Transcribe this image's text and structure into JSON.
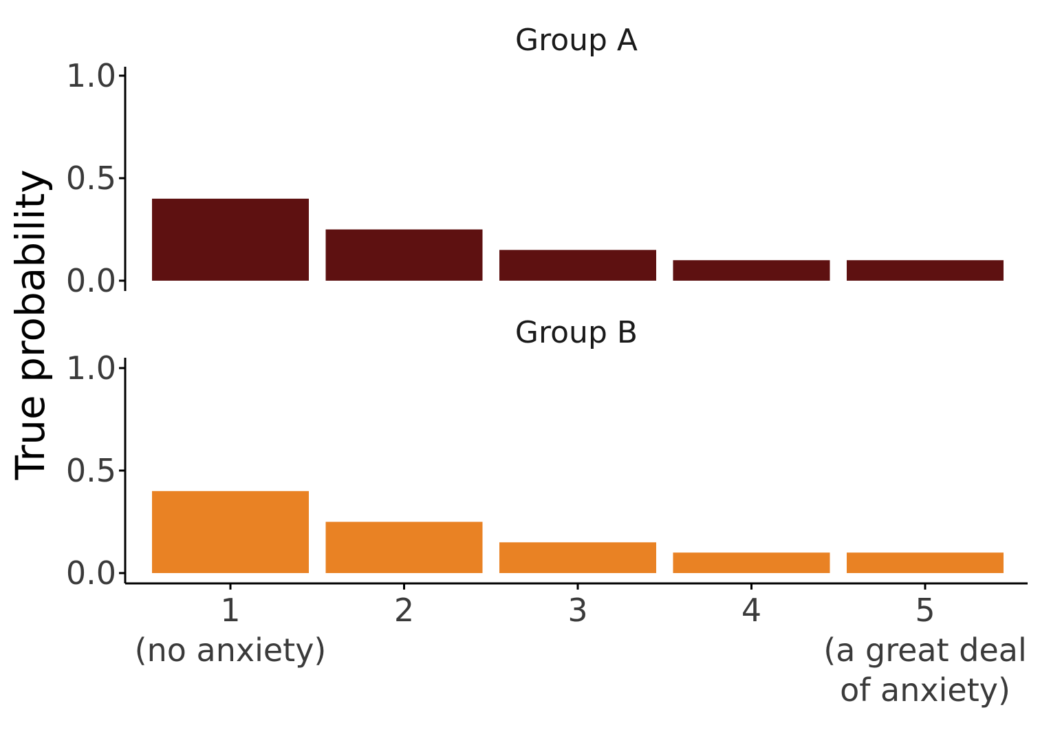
{
  "chart_data": {
    "type": "bar",
    "ylabel": "True probability",
    "xlabel": "",
    "ylim": [
      0,
      1
    ],
    "yticks": [
      "0.0",
      "0.5",
      "1.0"
    ],
    "categories": [
      "1",
      "2",
      "3",
      "4",
      "5"
    ],
    "category_labels": [
      [
        "1",
        "(no anxiety)"
      ],
      [
        "2"
      ],
      [
        "3"
      ],
      [
        "4"
      ],
      [
        "5",
        "(a great deal",
        "of anxiety)"
      ]
    ],
    "grid": false,
    "legend": "none",
    "facets": [
      {
        "title": "Group A",
        "color": "#5e1111",
        "values": [
          0.4,
          0.25,
          0.15,
          0.1,
          0.1
        ]
      },
      {
        "title": "Group B",
        "color": "#e98224",
        "values": [
          0.4,
          0.25,
          0.15,
          0.1,
          0.1
        ]
      }
    ]
  }
}
